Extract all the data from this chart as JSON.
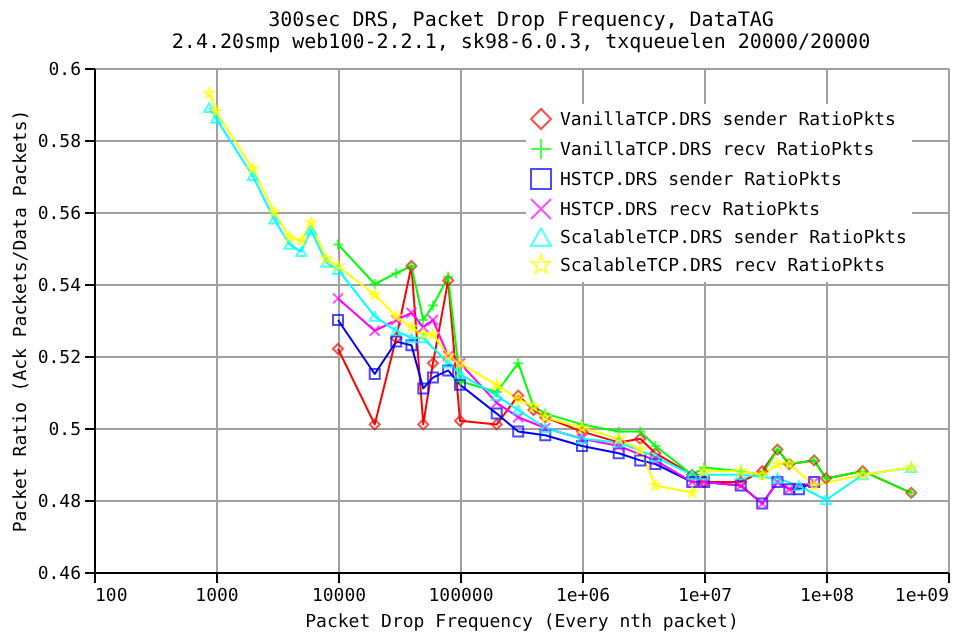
{
  "chart_data": {
    "type": "line",
    "title": "300sec DRS, Packet Drop Frequency, DataTAG",
    "subtitle": "2.4.20smp web100-2.2.1, sk98-6.0.3, txqueuelen 20000/20000",
    "xlabel": "Packet Drop Frequency (Every nth packet)",
    "ylabel": "Packet Ratio (Ack Packets/Data Packets)",
    "log": "x",
    "grid": true,
    "legend": "top right",
    "xlim": [
      100,
      1000000000
    ],
    "xticks": [
      100,
      1000,
      10000,
      100000,
      {
        "value": 1000000,
        "label": "1e+06"
      },
      {
        "value": 10000000,
        "label": "1e+07"
      },
      {
        "value": 100000000,
        "label": "1e+08"
      },
      {
        "value": 1000000000,
        "label": "1e+09"
      }
    ],
    "ylim": [
      0.46,
      0.6
    ],
    "yticks": [
      0.46,
      0.48,
      0.5,
      0.52,
      0.54,
      0.56,
      0.58,
      0.6
    ],
    "series": [
      {
        "name": "VanillaTCP.DRS sender RatioPkts",
        "color": "#ff0000",
        "marker": "diamond",
        "x": [
          10000,
          20000,
          30000,
          40000,
          50000,
          60000,
          80000,
          100000,
          200000,
          300000,
          400000,
          500000,
          1000000,
          2000000,
          3000000,
          4000000,
          8000000,
          10000000,
          20000000,
          30000000,
          40000000,
          50000000,
          80000000,
          100000000,
          200000000,
          500000000
        ],
        "values": [
          0.522,
          0.501,
          0.525,
          0.545,
          0.501,
          0.518,
          0.541,
          0.502,
          0.501,
          0.509,
          0.505,
          0.503,
          0.499,
          0.496,
          0.497,
          0.493,
          0.487,
          0.485,
          0.485,
          0.488,
          0.494,
          0.49,
          0.491,
          0.486,
          0.488,
          0.482
        ]
      },
      {
        "name": "VanillaTCP.DRS recv RatioPkts",
        "color": "#00ff00",
        "marker": "cross",
        "x": [
          10000,
          20000,
          30000,
          40000,
          50000,
          60000,
          80000,
          100000,
          200000,
          300000,
          400000,
          500000,
          1000000,
          2000000,
          3000000,
          4000000,
          8000000,
          10000000,
          20000000,
          30000000,
          40000000,
          50000000,
          80000000,
          100000000,
          200000000,
          500000000
        ],
        "values": [
          0.551,
          0.54,
          0.543,
          0.545,
          0.53,
          0.534,
          0.542,
          0.513,
          0.51,
          0.518,
          0.506,
          0.504,
          0.501,
          0.499,
          0.499,
          0.495,
          0.487,
          0.489,
          0.488,
          0.487,
          0.494,
          0.49,
          0.491,
          0.486,
          0.488,
          0.482
        ]
      },
      {
        "name": "HSTCP.DRS sender RatioPkts",
        "color": "#0000ff",
        "marker": "square",
        "x": [
          10000,
          20000,
          30000,
          40000,
          50000,
          60000,
          80000,
          100000,
          200000,
          300000,
          500000,
          1000000,
          2000000,
          3000000,
          4000000,
          8000000,
          10000000,
          20000000,
          30000000,
          40000000,
          50000000,
          60000000,
          80000000
        ],
        "values": [
          0.53,
          0.515,
          0.524,
          0.523,
          0.511,
          0.514,
          0.516,
          0.512,
          0.504,
          0.499,
          0.498,
          0.495,
          0.493,
          0.491,
          0.49,
          0.485,
          0.485,
          0.484,
          0.479,
          0.485,
          0.483,
          0.483,
          0.485
        ]
      },
      {
        "name": "HSTCP.DRS recv RatioPkts",
        "color": "#ff00ff",
        "marker": "x",
        "x": [
          10000,
          20000,
          30000,
          40000,
          50000,
          60000,
          80000,
          100000,
          200000,
          300000,
          500000,
          1000000,
          2000000,
          4000000,
          8000000,
          10000000,
          20000000,
          30000000,
          40000000,
          50000000,
          80000000
        ],
        "values": [
          0.536,
          0.527,
          0.53,
          0.532,
          0.528,
          0.53,
          0.52,
          0.518,
          0.507,
          0.503,
          0.5,
          0.497,
          0.495,
          0.491,
          0.485,
          0.485,
          0.484,
          0.479,
          0.485,
          0.483,
          0.485
        ]
      },
      {
        "name": "ScalableTCP.DRS sender RatioPkts",
        "color": "#00ffff",
        "marker": "triangle",
        "x": [
          880,
          1000,
          2000,
          3000,
          4000,
          5000,
          6000,
          8000,
          10000,
          20000,
          30000,
          40000,
          50000,
          80000,
          100000,
          200000,
          300000,
          500000,
          1000000,
          2000000,
          4000000,
          8000000,
          10000000,
          20000000,
          40000000,
          60000000,
          100000000,
          200000000,
          500000000
        ],
        "values": [
          0.589,
          0.586,
          0.57,
          0.558,
          0.551,
          0.549,
          0.555,
          0.546,
          0.544,
          0.531,
          0.527,
          0.525,
          0.525,
          0.518,
          0.515,
          0.509,
          0.505,
          0.5,
          0.497,
          0.496,
          0.492,
          0.487,
          0.487,
          0.487,
          0.486,
          0.484,
          0.48,
          0.487,
          0.489
        ]
      },
      {
        "name": "ScalableTCP.DRS recv RatioPkts",
        "color": "#ffff00",
        "marker": "star",
        "x": [
          880,
          1000,
          2000,
          3000,
          4000,
          5000,
          6000,
          8000,
          10000,
          20000,
          30000,
          40000,
          50000,
          60000,
          80000,
          100000,
          200000,
          300000,
          400000,
          500000,
          1000000,
          2000000,
          3000000,
          4000000,
          8000000,
          10000000,
          20000000,
          30000000,
          40000000,
          50000000,
          80000000,
          200000000,
          500000000
        ],
        "values": [
          0.593,
          0.588,
          0.572,
          0.56,
          0.553,
          0.552,
          0.557,
          0.547,
          0.545,
          0.537,
          0.531,
          0.528,
          0.526,
          0.526,
          0.52,
          0.518,
          0.512,
          0.508,
          0.506,
          0.503,
          0.5,
          0.497,
          0.494,
          0.484,
          0.482,
          0.488,
          0.488,
          0.487,
          0.49,
          0.49,
          0.484,
          0.487,
          0.489
        ]
      }
    ]
  }
}
